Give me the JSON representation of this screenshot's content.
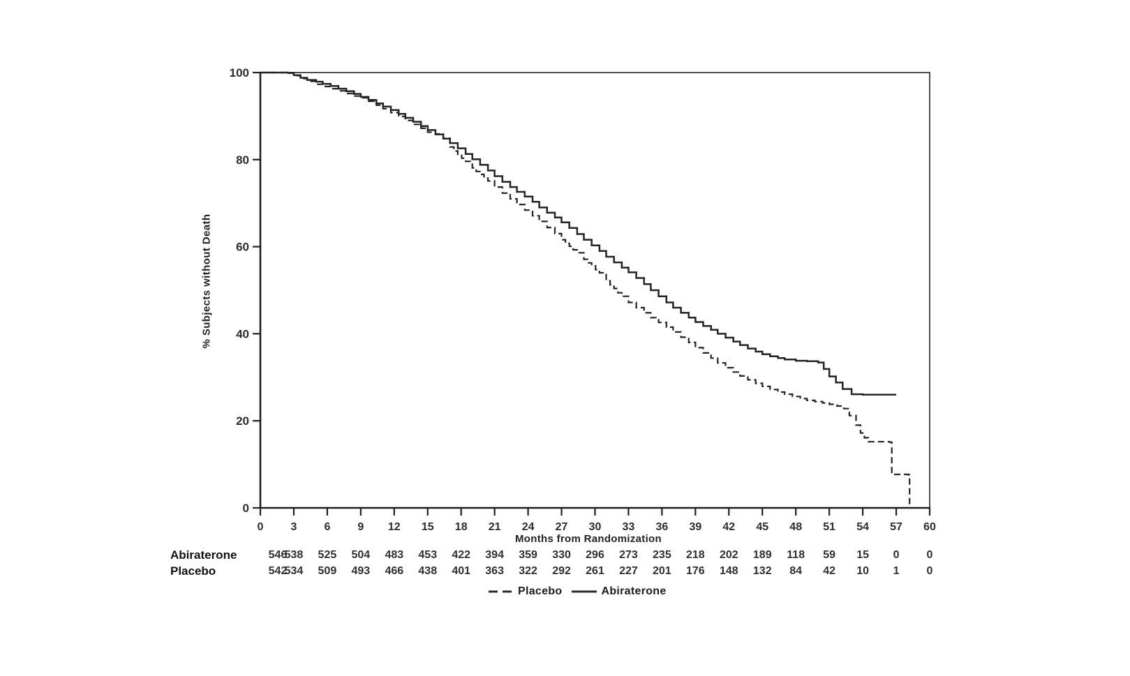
{
  "figure": {
    "background": "#ffffff",
    "curve_color": "#232323",
    "frame_color": "#4d4d4d"
  },
  "chart_data": {
    "type": "line",
    "subtype": "kaplan-meier-step",
    "title": "",
    "xlabel": "Months from Randomization",
    "ylabel": "% Subjects without Death",
    "xlim": [
      0,
      60
    ],
    "ylim": [
      0,
      100
    ],
    "x_ticks": [
      0,
      3,
      6,
      9,
      12,
      15,
      18,
      21,
      24,
      27,
      30,
      33,
      36,
      39,
      42,
      45,
      48,
      51,
      54,
      57,
      60
    ],
    "y_ticks": [
      0,
      20,
      40,
      60,
      80,
      100
    ],
    "grid": false,
    "legend_position": "bottom-center",
    "series": [
      {
        "name": "Abiraterone",
        "style": "solid",
        "points": [
          [
            0,
            100
          ],
          [
            2.5,
            99.9
          ],
          [
            3,
            99.4
          ],
          [
            3.6,
            98.8
          ],
          [
            4.2,
            98.3
          ],
          [
            5,
            97.9
          ],
          [
            5.6,
            97.4
          ],
          [
            6.3,
            96.9
          ],
          [
            7,
            96.3
          ],
          [
            7.7,
            95.7
          ],
          [
            8.4,
            95.1
          ],
          [
            9,
            94.4
          ],
          [
            9.7,
            93.7
          ],
          [
            10.4,
            92.9
          ],
          [
            11,
            92.2
          ],
          [
            11.7,
            91.4
          ],
          [
            12.4,
            90.5
          ],
          [
            13,
            89.6
          ],
          [
            13.7,
            88.7
          ],
          [
            14.4,
            87.7
          ],
          [
            15,
            86.8
          ],
          [
            15.7,
            85.8
          ],
          [
            16.4,
            84.8
          ],
          [
            17,
            83.8
          ],
          [
            17.7,
            82.6
          ],
          [
            18.4,
            81.3
          ],
          [
            19,
            80.1
          ],
          [
            19.7,
            78.8
          ],
          [
            20.4,
            77.5
          ],
          [
            21,
            76.2
          ],
          [
            21.7,
            74.9
          ],
          [
            22.4,
            73.7
          ],
          [
            23,
            72.6
          ],
          [
            23.7,
            71.5
          ],
          [
            24.4,
            70.3
          ],
          [
            25,
            69
          ],
          [
            25.7,
            67.8
          ],
          [
            26.4,
            66.7
          ],
          [
            27,
            65.6
          ],
          [
            27.7,
            64.3
          ],
          [
            28.4,
            62.9
          ],
          [
            29,
            61.6
          ],
          [
            29.7,
            60.3
          ],
          [
            30.4,
            59
          ],
          [
            31,
            57.7
          ],
          [
            31.7,
            56.4
          ],
          [
            32.4,
            55.2
          ],
          [
            33,
            54.1
          ],
          [
            33.7,
            52.8
          ],
          [
            34.4,
            51.4
          ],
          [
            35,
            50
          ],
          [
            35.7,
            48.6
          ],
          [
            36.4,
            47.2
          ],
          [
            37,
            46
          ],
          [
            37.7,
            44.8
          ],
          [
            38.4,
            43.7
          ],
          [
            39,
            42.7
          ],
          [
            39.7,
            41.8
          ],
          [
            40.4,
            40.9
          ],
          [
            41,
            40
          ],
          [
            41.7,
            39.1
          ],
          [
            42.4,
            38.2
          ],
          [
            43,
            37.4
          ],
          [
            43.7,
            36.6
          ],
          [
            44.4,
            35.9
          ],
          [
            45,
            35.3
          ],
          [
            45.7,
            34.8
          ],
          [
            46.4,
            34.4
          ],
          [
            47,
            34.1
          ],
          [
            48,
            33.8
          ],
          [
            49,
            33.7
          ],
          [
            50,
            33.4
          ],
          [
            50.5,
            31.9
          ],
          [
            51,
            30.2
          ],
          [
            51.6,
            28.8
          ],
          [
            52.2,
            27.3
          ],
          [
            53,
            26.1
          ],
          [
            54,
            26
          ],
          [
            57,
            26
          ]
        ]
      },
      {
        "name": "Placebo",
        "style": "dashed",
        "points": [
          [
            0,
            100
          ],
          [
            2.5,
            99.9
          ],
          [
            3,
            99.3
          ],
          [
            3.6,
            98.6
          ],
          [
            4.2,
            98
          ],
          [
            5,
            97.3
          ],
          [
            5.6,
            96.8
          ],
          [
            6.3,
            96.3
          ],
          [
            7,
            95.8
          ],
          [
            7.7,
            95.2
          ],
          [
            8.4,
            94.6
          ],
          [
            9,
            94.2
          ],
          [
            9.7,
            93.4
          ],
          [
            10.4,
            92.5
          ],
          [
            11,
            91.7
          ],
          [
            11.7,
            90.8
          ],
          [
            12.4,
            89.9
          ],
          [
            13,
            89
          ],
          [
            13.7,
            88.1
          ],
          [
            14.4,
            87.2
          ],
          [
            15,
            86.3
          ],
          [
            15.7,
            85.9
          ],
          [
            16.4,
            84.9
          ],
          [
            17,
            82.9
          ],
          [
            17.7,
            81.2
          ],
          [
            18.4,
            79.6
          ],
          [
            19,
            78.1
          ],
          [
            19.7,
            76.6
          ],
          [
            20.4,
            75.1
          ],
          [
            21,
            73.7
          ],
          [
            21.7,
            72.3
          ],
          [
            22.4,
            71
          ],
          [
            23,
            69.7
          ],
          [
            23.7,
            68.4
          ],
          [
            24.4,
            67.1
          ],
          [
            25,
            65.8
          ],
          [
            25.7,
            64.4
          ],
          [
            26.4,
            63
          ],
          [
            27,
            61.6
          ],
          [
            27.7,
            60.1
          ],
          [
            28.4,
            58.6
          ],
          [
            29,
            57.1
          ],
          [
            29.7,
            55.6
          ],
          [
            30.4,
            54
          ],
          [
            31,
            52.2
          ],
          [
            31.7,
            50.4
          ],
          [
            32.4,
            48.6
          ],
          [
            33,
            47.2
          ],
          [
            33.7,
            46
          ],
          [
            34.4,
            44.8
          ],
          [
            35,
            43.7
          ],
          [
            35.7,
            42.6
          ],
          [
            36.4,
            41.5
          ],
          [
            37,
            40.4
          ],
          [
            37.7,
            39.2
          ],
          [
            38.4,
            38
          ],
          [
            39,
            36.8
          ],
          [
            39.7,
            35.6
          ],
          [
            40.4,
            34.4
          ],
          [
            41,
            33.3
          ],
          [
            41.7,
            32.2
          ],
          [
            42.4,
            31.2
          ],
          [
            43,
            30.3
          ],
          [
            43.7,
            29.4
          ],
          [
            44.4,
            28.6
          ],
          [
            45,
            27.9
          ],
          [
            45.7,
            27.2
          ],
          [
            46.4,
            26.6
          ],
          [
            47,
            26.1
          ],
          [
            47.7,
            25.6
          ],
          [
            48.4,
            25.1
          ],
          [
            49,
            24.7
          ],
          [
            49.7,
            24.4
          ],
          [
            50.4,
            24.1
          ],
          [
            51,
            23.8
          ],
          [
            51.7,
            23.4
          ],
          [
            52.3,
            22.8
          ],
          [
            52.8,
            21.2
          ],
          [
            53.4,
            19
          ],
          [
            53.8,
            17.2
          ],
          [
            54.5,
            15.2
          ],
          [
            56.4,
            15.1
          ],
          [
            56.6,
            7.7
          ],
          [
            58.1,
            7.6
          ],
          [
            58.2,
            0
          ],
          [
            58.3,
            0
          ]
        ]
      }
    ],
    "at_risk_table": {
      "rows": [
        {
          "label": "Abiraterone",
          "values": [
            546,
            538,
            525,
            504,
            483,
            453,
            422,
            394,
            359,
            330,
            296,
            273,
            235,
            218,
            202,
            189,
            118,
            59,
            15,
            0,
            0
          ]
        },
        {
          "label": "Placebo",
          "values": [
            542,
            534,
            509,
            493,
            466,
            438,
            401,
            363,
            322,
            292,
            261,
            227,
            201,
            176,
            148,
            132,
            84,
            42,
            10,
            1,
            0
          ]
        }
      ]
    },
    "legend": [
      {
        "label": "Placebo",
        "style": "dashed"
      },
      {
        "label": "Abiraterone",
        "style": "solid"
      }
    ]
  }
}
